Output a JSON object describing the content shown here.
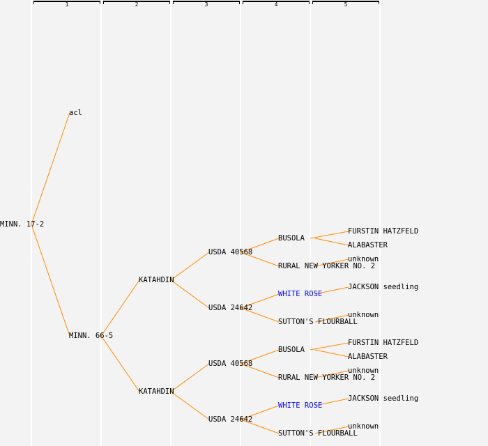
{
  "generations": [
    "1",
    "2",
    "3",
    "4",
    "5"
  ],
  "colors": {
    "line": "#ff8c00",
    "text": "#000000",
    "highlight": "#0000ff"
  },
  "tree": {
    "name": "MINN. 17-2",
    "parents": [
      {
        "name": "acl"
      },
      {
        "name": "MINN. 66-5",
        "parents": [
          {
            "name": "KATAHDIN",
            "parents": [
              {
                "name": "USDA 40568",
                "parents": [
                  {
                    "name": "BUSOLA",
                    "parents": [
                      {
                        "name": "FURSTIN HATZFELD"
                      },
                      {
                        "name": "ALABASTER"
                      }
                    ]
                  },
                  {
                    "name": "RURAL NEW YORKER NO. 2",
                    "parents": [
                      {
                        "name": "unknown"
                      },
                      null
                    ]
                  }
                ]
              },
              {
                "name": "USDA 24642",
                "parents": [
                  {
                    "name": "WHITE ROSE",
                    "highlight": true,
                    "parents": [
                      {
                        "name": "JACKSON seedling"
                      },
                      null
                    ]
                  },
                  {
                    "name": "SUTTON'S FLOURBALL",
                    "parents": [
                      {
                        "name": "unknown"
                      },
                      null
                    ]
                  }
                ]
              }
            ]
          },
          {
            "name": "KATAHDIN",
            "parents": [
              {
                "name": "USDA 40568",
                "parents": [
                  {
                    "name": "BUSOLA",
                    "parents": [
                      {
                        "name": "FURSTIN HATZFELD"
                      },
                      {
                        "name": "ALABASTER"
                      }
                    ]
                  },
                  {
                    "name": "RURAL NEW YORKER NO. 2",
                    "parents": [
                      {
                        "name": "unknown"
                      },
                      null
                    ]
                  }
                ]
              },
              {
                "name": "USDA 24642",
                "parents": [
                  {
                    "name": "WHITE ROSE",
                    "highlight": true,
                    "parents": [
                      {
                        "name": "JACKSON seedling"
                      },
                      null
                    ]
                  },
                  {
                    "name": "SUTTON'S FLOURBALL",
                    "parents": [
                      {
                        "name": "unknown"
                      },
                      null
                    ]
                  }
                ]
              }
            ]
          }
        ]
      }
    ]
  }
}
